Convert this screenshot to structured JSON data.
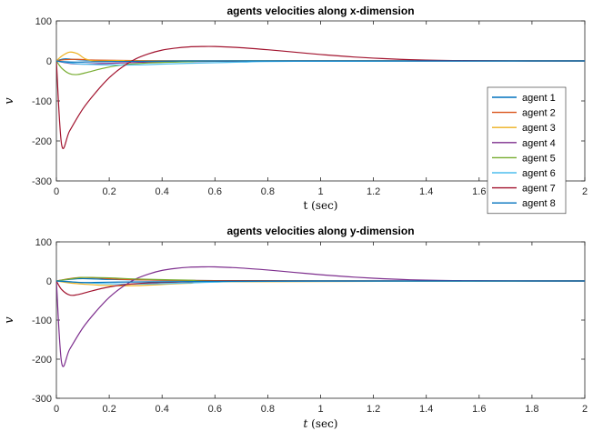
{
  "colors": {
    "series": [
      "#0072BD",
      "#D95319",
      "#EDB120",
      "#7E2F8E",
      "#77AC30",
      "#4DBEEE",
      "#A2142F",
      "#0072BD"
    ],
    "axis": "#262626",
    "background": "#ffffff"
  },
  "legend": {
    "entries": [
      "agent 1",
      "agent 2",
      "agent 3",
      "agent 4",
      "agent 5",
      "agent 6",
      "agent 7",
      "agent 8"
    ],
    "placement": "bottom-right of top panel"
  },
  "chart_data": [
    {
      "type": "line",
      "title": "agents velocities along x-dimension",
      "xlabel": "t (sec)",
      "ylabel": "v",
      "xlim": [
        0,
        2
      ],
      "ylim": [
        -300,
        100
      ],
      "xticks": [
        0,
        0.2,
        0.4,
        0.6,
        0.8,
        1,
        1.2,
        1.4,
        1.6,
        1.8,
        2
      ],
      "xtick_labels": [
        "0",
        "0.2",
        "0.4",
        "0.6",
        "0.8",
        "1",
        "1.2",
        "1.4",
        "1.6",
        "1.8",
        "2"
      ],
      "yticks": [
        -300,
        -200,
        -100,
        0,
        100
      ],
      "ytick_labels": [
        "-300",
        "-200",
        "-100",
        "0",
        "100"
      ],
      "grid": false,
      "legend": true,
      "series": [
        {
          "name": "agent 1",
          "x": [
            0,
            0.03,
            0.08,
            0.15,
            0.3,
            0.5,
            0.8,
            2
          ],
          "y": [
            0,
            5,
            3,
            1,
            0,
            0,
            0,
            0
          ]
        },
        {
          "name": "agent 2",
          "x": [
            0,
            0.03,
            0.08,
            0.15,
            0.3,
            0.5,
            0.8,
            2
          ],
          "y": [
            0,
            3,
            4,
            2,
            1,
            0,
            0,
            0
          ]
        },
        {
          "name": "agent 3",
          "x": [
            0,
            0.02,
            0.05,
            0.08,
            0.11,
            0.15,
            0.25,
            0.4,
            2
          ],
          "y": [
            0,
            12,
            22,
            18,
            5,
            0,
            1,
            0,
            0
          ]
        },
        {
          "name": "agent 4",
          "x": [
            0,
            0.03,
            0.06,
            0.1,
            0.2,
            0.35,
            0.6,
            0.9,
            2
          ],
          "y": [
            0,
            -4,
            -7,
            -8,
            -6,
            -3,
            -1,
            0,
            0
          ]
        },
        {
          "name": "agent 5",
          "x": [
            0,
            0.02,
            0.05,
            0.08,
            0.12,
            0.18,
            0.25,
            0.35,
            0.5,
            0.7,
            2
          ],
          "y": [
            0,
            -18,
            -32,
            -34,
            -28,
            -18,
            -10,
            -5,
            -2,
            0,
            0
          ]
        },
        {
          "name": "agent 6",
          "x": [
            0,
            0.05,
            0.1,
            0.2,
            0.3,
            0.4,
            0.5,
            0.7,
            0.9,
            2
          ],
          "y": [
            0,
            -5,
            -8,
            -10,
            -10,
            -8,
            -6,
            -3,
            -1,
            0
          ]
        },
        {
          "name": "agent 7",
          "x": [
            0,
            0.02,
            0.05,
            0.1,
            0.15,
            0.2,
            0.25,
            0.3,
            0.35,
            0.4,
            0.45,
            0.5,
            0.55,
            0.6,
            0.7,
            0.8,
            0.9,
            1.0,
            1.1,
            1.2,
            1.3,
            1.4,
            1.5,
            1.6,
            1.8,
            2.0
          ],
          "y": [
            0,
            -210,
            -175,
            -120,
            -78,
            -42,
            -15,
            5,
            18,
            27,
            32,
            35,
            36,
            36,
            33,
            28,
            22,
            16,
            11,
            7,
            4,
            2,
            1,
            0.5,
            0,
            0
          ]
        },
        {
          "name": "agent 8",
          "x": [
            0,
            0.03,
            0.08,
            0.15,
            0.3,
            0.5,
            0.8,
            2
          ],
          "y": [
            0,
            -2,
            -3,
            -2,
            -1,
            0,
            0,
            0
          ]
        }
      ]
    },
    {
      "type": "line",
      "title": "agents velocities along y-dimension",
      "xlabel": "t (sec)",
      "ylabel": "v",
      "xlim": [
        0,
        2
      ],
      "ylim": [
        -300,
        100
      ],
      "xticks": [
        0,
        0.2,
        0.4,
        0.6,
        0.8,
        1,
        1.2,
        1.4,
        1.6,
        1.8,
        2
      ],
      "xtick_labels": [
        "0",
        "0.2",
        "0.4",
        "0.6",
        "0.8",
        "1",
        "1.2",
        "1.4",
        "1.6",
        "1.8",
        "2"
      ],
      "yticks": [
        -300,
        -200,
        -100,
        0,
        100
      ],
      "ytick_labels": [
        "-300",
        "-200",
        "-100",
        "0",
        "100"
      ],
      "grid": false,
      "legend": false,
      "series": [
        {
          "name": "agent 1",
          "x": [
            0,
            0.05,
            0.1,
            0.2,
            0.4,
            0.6,
            1.0,
            2
          ],
          "y": [
            0,
            4,
            6,
            4,
            2,
            1,
            0,
            0
          ]
        },
        {
          "name": "agent 2",
          "x": [
            0,
            0.05,
            0.1,
            0.15,
            0.25,
            0.4,
            0.6,
            1.0,
            2
          ],
          "y": [
            0,
            6,
            9,
            8,
            4,
            2,
            1,
            0,
            0
          ]
        },
        {
          "name": "agent 3",
          "x": [
            0,
            0.05,
            0.1,
            0.2,
            0.3,
            0.4,
            0.5,
            0.7,
            2
          ],
          "y": [
            0,
            -5,
            -8,
            -12,
            -12,
            -9,
            -6,
            -2,
            0
          ]
        },
        {
          "name": "agent 4",
          "x": [
            0,
            0.02,
            0.05,
            0.1,
            0.15,
            0.2,
            0.25,
            0.3,
            0.35,
            0.4,
            0.45,
            0.5,
            0.55,
            0.6,
            0.7,
            0.8,
            0.9,
            1.0,
            1.1,
            1.2,
            1.3,
            1.4,
            1.5,
            1.6,
            1.8,
            2.0
          ],
          "y": [
            0,
            -210,
            -175,
            -120,
            -78,
            -42,
            -15,
            5,
            18,
            27,
            32,
            35,
            36,
            36,
            33,
            28,
            22,
            16,
            11,
            7,
            4,
            2,
            1,
            0.5,
            0,
            0
          ]
        },
        {
          "name": "agent 5",
          "x": [
            0,
            0.05,
            0.1,
            0.2,
            0.3,
            0.5,
            0.7,
            2
          ],
          "y": [
            0,
            5,
            9,
            8,
            5,
            2,
            0,
            0
          ]
        },
        {
          "name": "agent 6",
          "x": [
            0,
            0.1,
            0.2,
            0.3,
            0.4,
            0.5,
            0.6,
            0.8,
            2
          ],
          "y": [
            0,
            -4,
            -7,
            -8,
            -7,
            -5,
            -3,
            -1,
            0
          ]
        },
        {
          "name": "agent 7",
          "x": [
            0,
            0.02,
            0.05,
            0.08,
            0.12,
            0.18,
            0.25,
            0.35,
            0.5,
            0.7,
            2
          ],
          "y": [
            0,
            -22,
            -36,
            -35,
            -28,
            -18,
            -10,
            -5,
            -2,
            0,
            0
          ]
        },
        {
          "name": "agent 8",
          "x": [
            0,
            0.05,
            0.1,
            0.2,
            0.4,
            0.6,
            1.0,
            2
          ],
          "y": [
            0,
            -2,
            -4,
            -3,
            -2,
            -1,
            0,
            0
          ]
        }
      ]
    }
  ]
}
